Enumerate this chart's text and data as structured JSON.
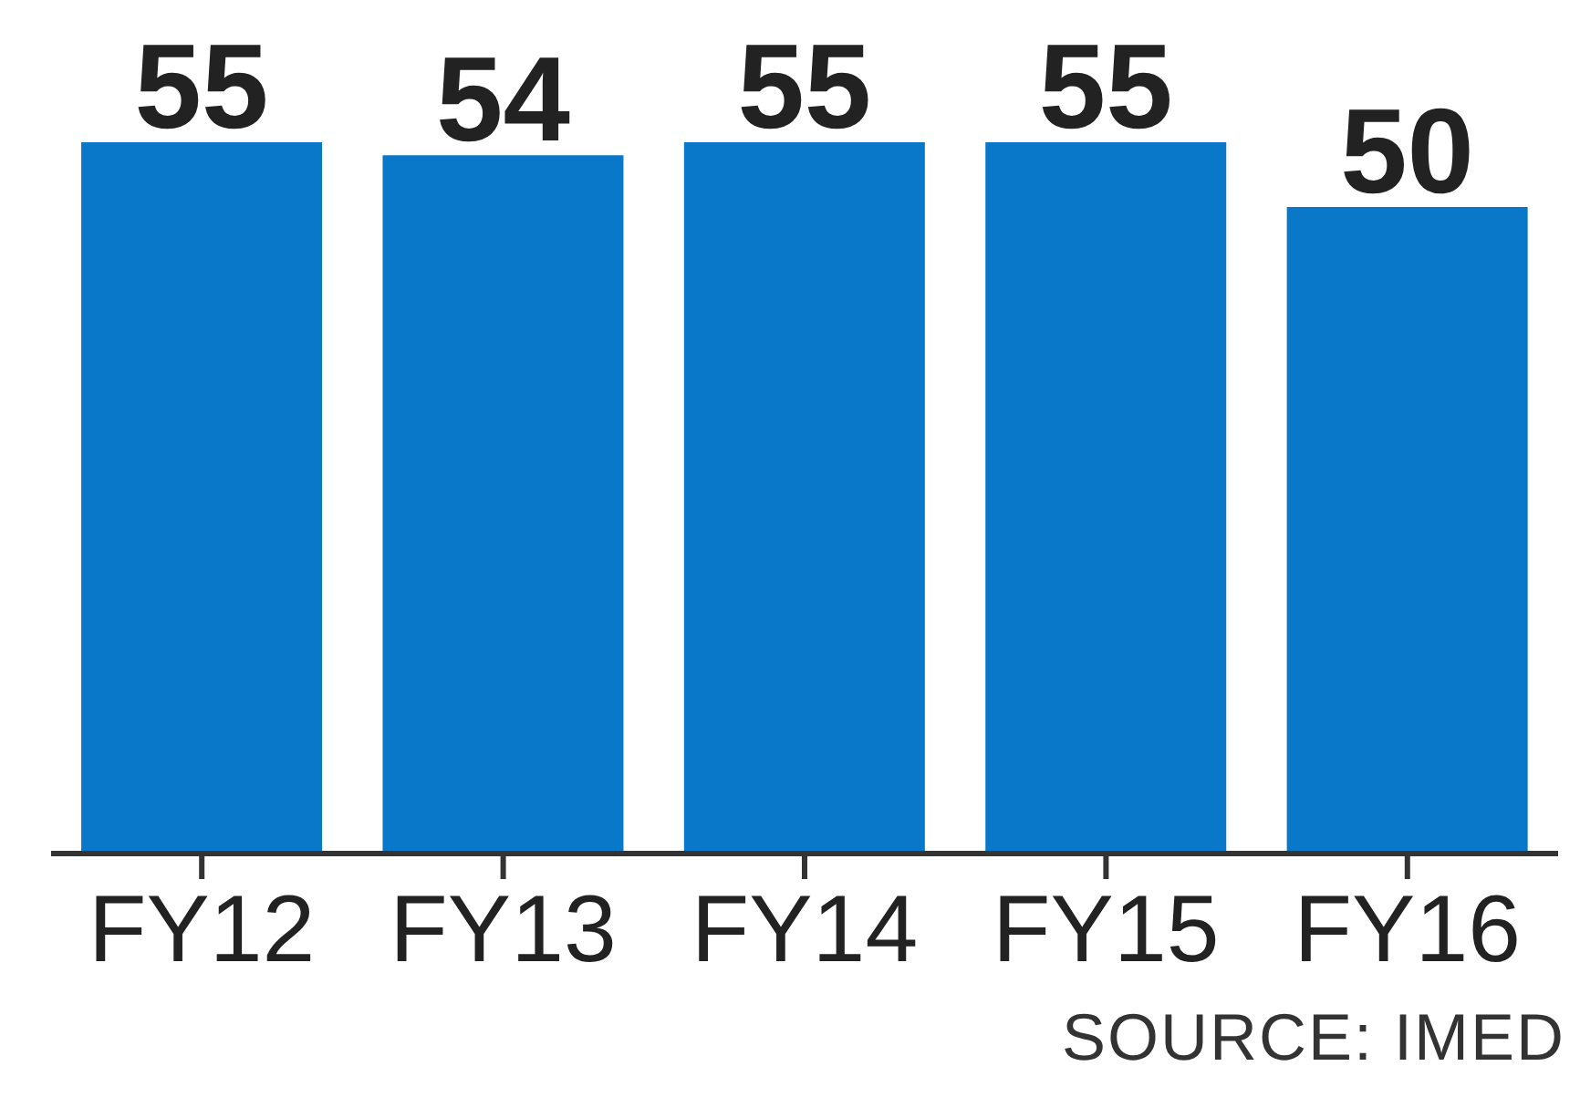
{
  "chart_data": {
    "type": "bar",
    "categories": [
      "FY12",
      "FY13",
      "FY14",
      "FY15",
      "FY16"
    ],
    "values": [
      55,
      54,
      55,
      55,
      50
    ],
    "color": "#0a78c8",
    "data_labels": true,
    "annotations": [
      "SOURCE: IMED"
    ]
  }
}
